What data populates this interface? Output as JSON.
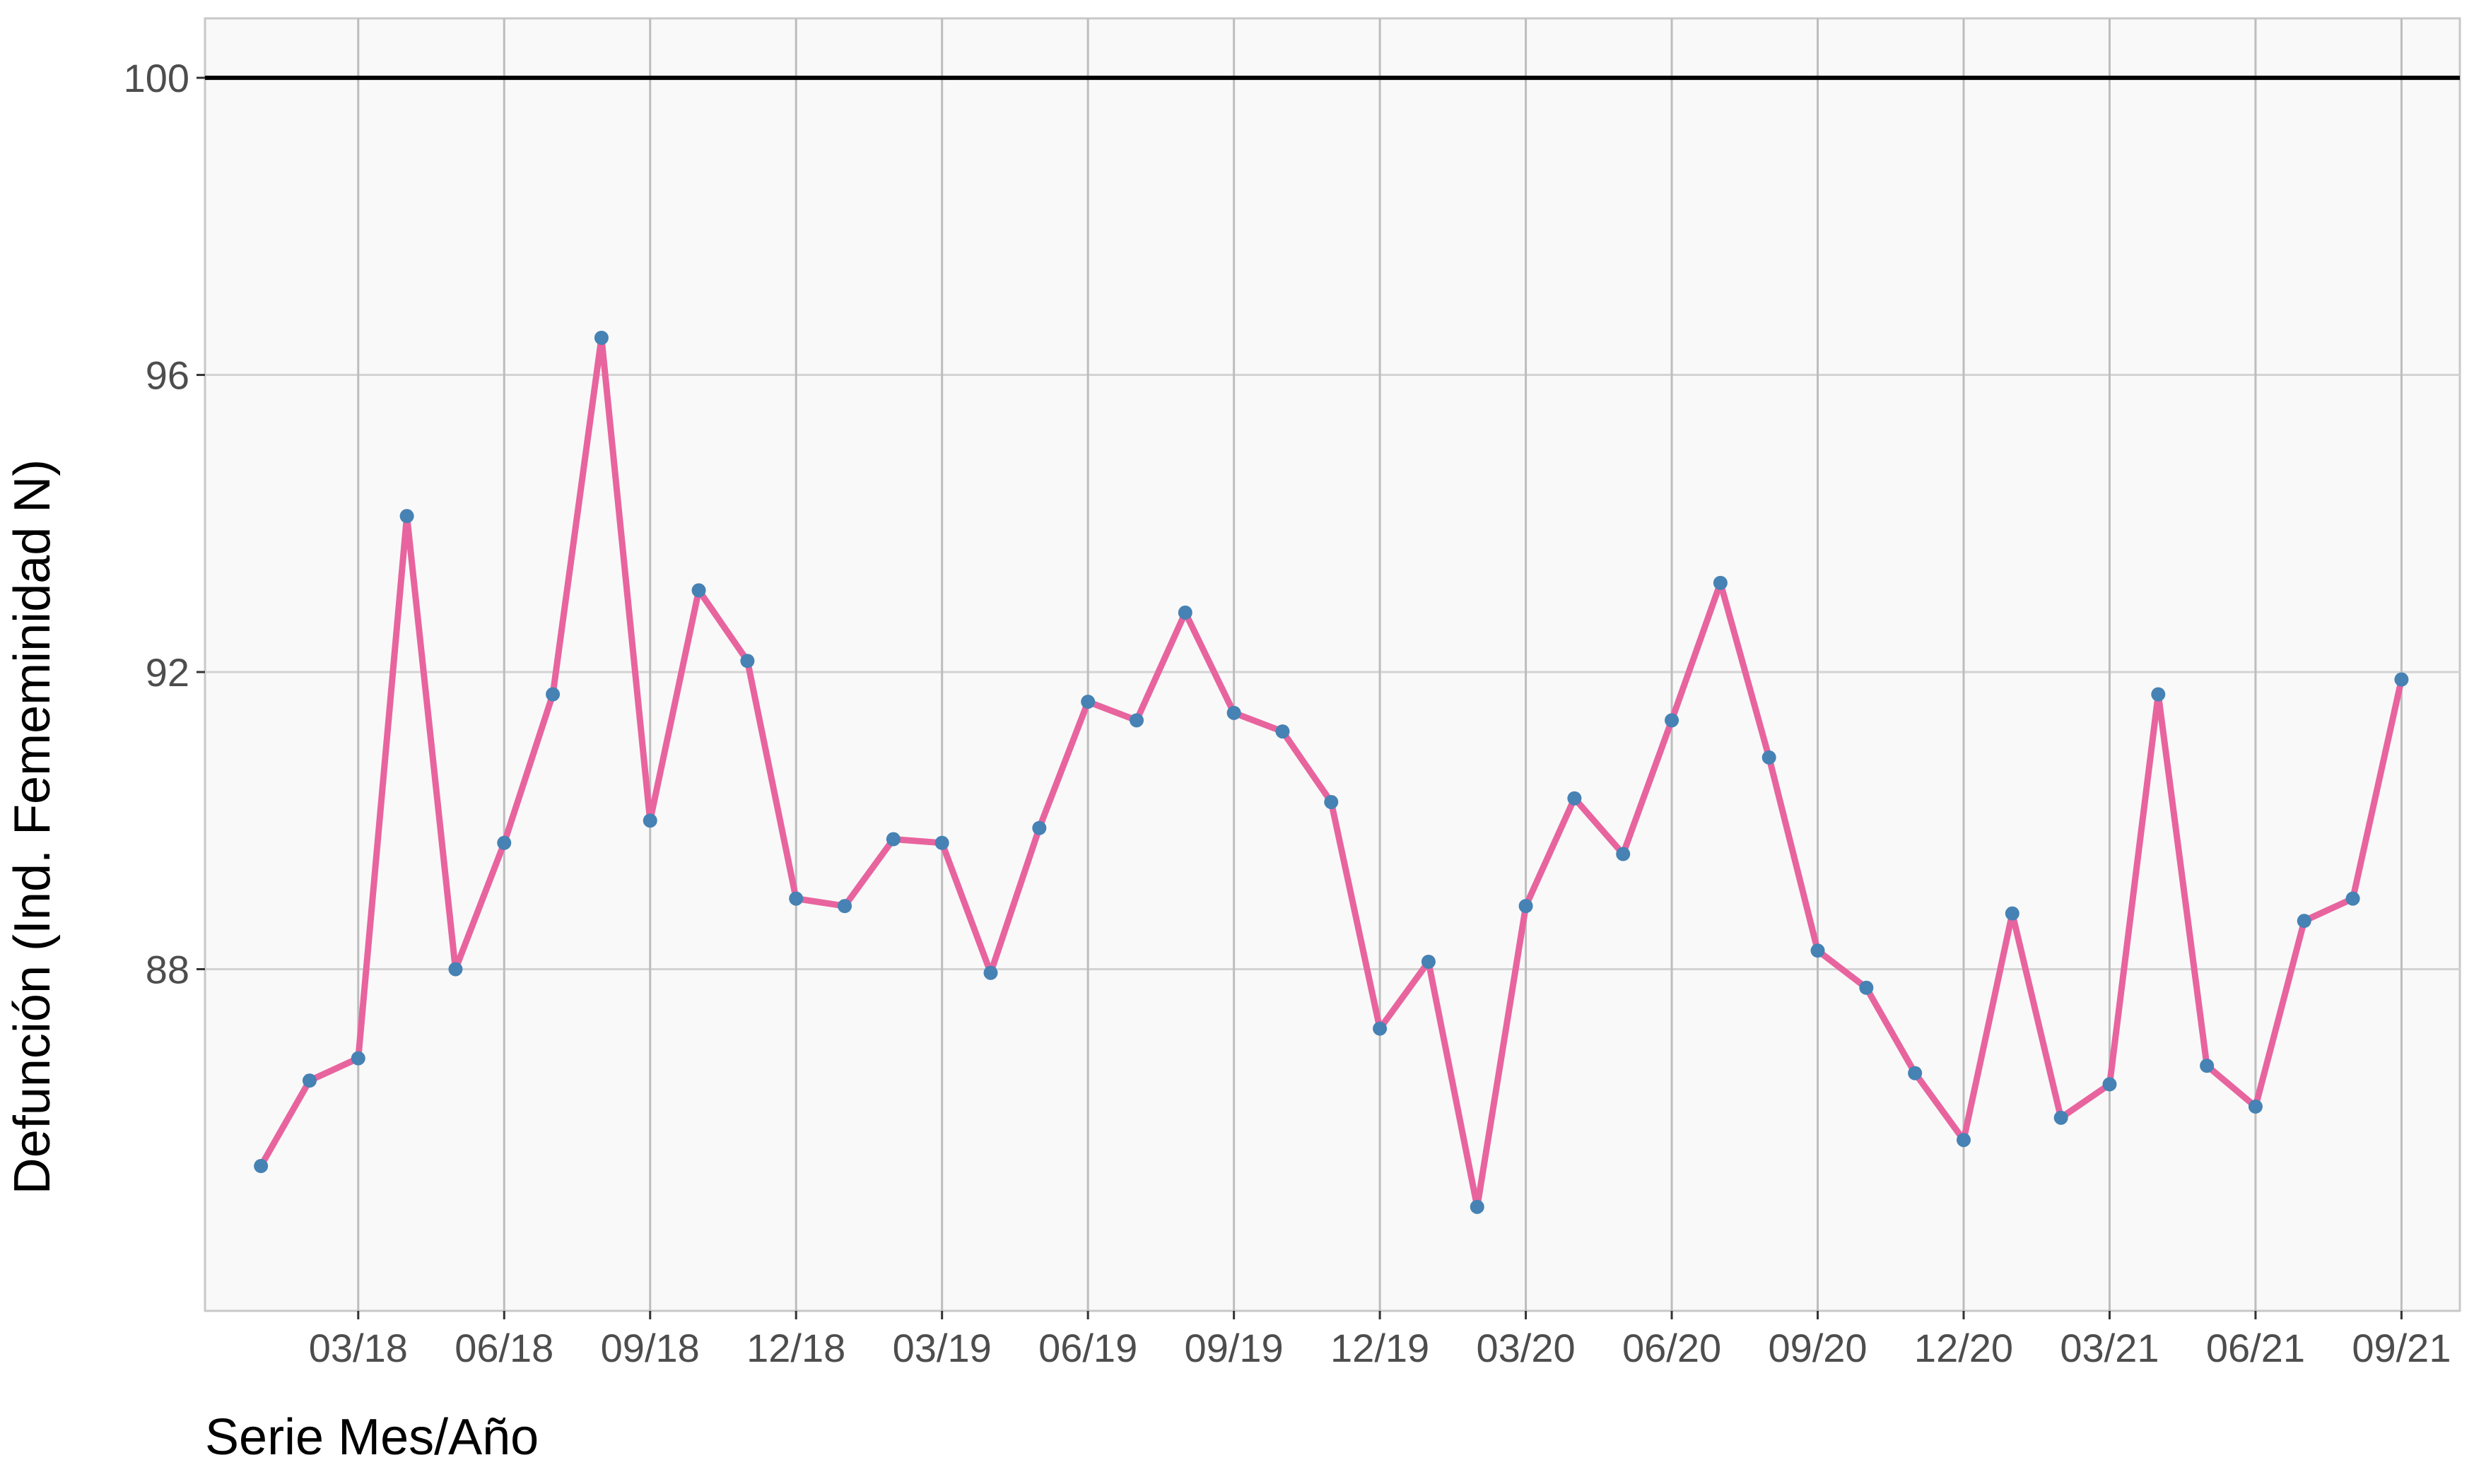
{
  "chart_data": {
    "type": "line",
    "xlabel": "Serie Mes/Año",
    "ylabel": "Defunción (Ind. Fememinidad N)",
    "x_tick_labels": [
      "03/18",
      "06/18",
      "09/18",
      "12/18",
      "03/19",
      "06/19",
      "09/19",
      "12/19",
      "03/20",
      "06/20",
      "09/20",
      "12/20",
      "03/21",
      "06/21",
      "09/21"
    ],
    "y_ticks": [
      88,
      92,
      96,
      100
    ],
    "ylim": [
      83.4,
      100.8
    ],
    "x_index_range": [
      -1.15,
      45.2
    ],
    "reference_line": 100,
    "grid": true,
    "x": [
      "01/18",
      "02/18",
      "03/18",
      "04/18",
      "05/18",
      "06/18",
      "07/18",
      "08/18",
      "09/18",
      "10/18",
      "11/18",
      "12/18",
      "01/19",
      "02/19",
      "03/19",
      "04/19",
      "05/19",
      "06/19",
      "07/19",
      "08/19",
      "09/19",
      "10/19",
      "11/19",
      "12/19",
      "01/20",
      "02/20",
      "03/20",
      "04/20",
      "05/20",
      "06/20",
      "07/20",
      "08/20",
      "09/20",
      "10/20",
      "11/20",
      "12/20",
      "01/21",
      "02/21",
      "03/21",
      "04/21",
      "05/21",
      "06/21",
      "07/21",
      "08/21",
      "09/21"
    ],
    "series": [
      {
        "values": [
          85.35,
          86.5,
          86.8,
          94.1,
          88.0,
          89.7,
          91.7,
          96.5,
          90.0,
          93.1,
          92.15,
          88.95,
          88.85,
          89.75,
          89.7,
          87.95,
          89.9,
          91.6,
          91.35,
          92.8,
          91.45,
          91.2,
          90.25,
          87.2,
          88.1,
          84.8,
          88.85,
          90.3,
          89.55,
          91.35,
          93.2,
          90.85,
          88.25,
          87.75,
          86.6,
          85.7,
          88.75,
          86.0,
          86.45,
          91.7,
          86.7,
          86.15,
          88.65,
          88.95,
          91.9
        ]
      }
    ],
    "colors": {
      "line": "#E8649E",
      "points": "#4682B4",
      "panel_background": "#F9F9F9",
      "grid": "#D3D3D3",
      "reference_line": "#000000"
    }
  }
}
